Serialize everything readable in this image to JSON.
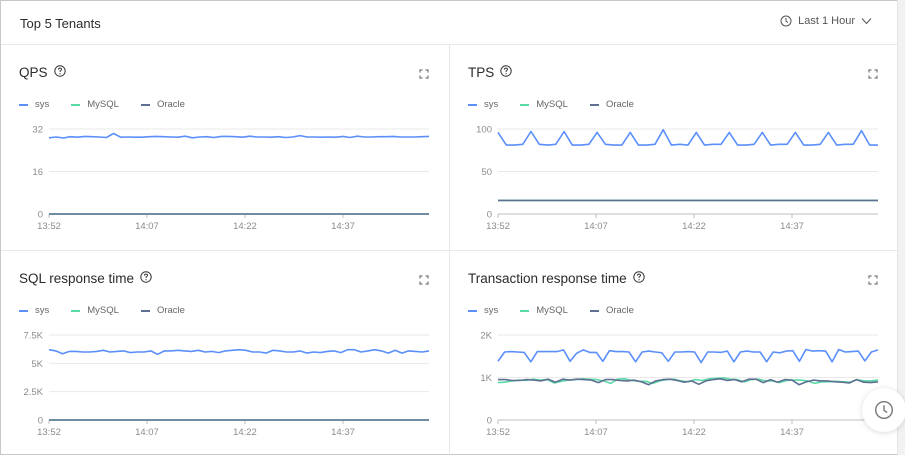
{
  "header": {
    "title": "Top 5 Tenants",
    "time_range": "Last 1 Hour"
  },
  "legend": [
    {
      "name": "sys",
      "color": "#5b8ff9"
    },
    {
      "name": "MySQL",
      "color": "#5ad8a6"
    },
    {
      "name": "Oracle",
      "color": "#5d7092"
    }
  ],
  "panels": [
    {
      "title": "QPS",
      "yticks": [
        "32",
        "16",
        "0"
      ]
    },
    {
      "title": "TPS",
      "yticks": [
        "100",
        "50",
        "0"
      ]
    },
    {
      "title": "SQL response time",
      "yticks": [
        "7.5K",
        "5K",
        "2.5K",
        "0"
      ]
    },
    {
      "title": "Transaction response time",
      "yticks": [
        "2K",
        "1K",
        "0"
      ]
    }
  ],
  "xticks": [
    "13:52",
    "14:07",
    "14:22",
    "14:37"
  ],
  "chart_data": [
    {
      "type": "line",
      "title": "QPS",
      "x_ticks": [
        "13:52",
        "14:07",
        "14:22",
        "14:37"
      ],
      "ylim": [
        0,
        32
      ],
      "y_ticks": [
        0,
        16,
        32
      ],
      "legend_position": "top-left",
      "grid": true,
      "series": [
        {
          "name": "sys",
          "color": "#5b8ff9",
          "values": [
            28.7,
            29.0,
            28.6,
            29.1,
            28.9,
            29.2,
            29.1,
            29.0,
            28.8,
            30.3,
            28.9,
            29.0,
            28.9,
            28.9,
            29.1,
            29.2,
            29.1,
            29.0,
            28.9,
            29.3,
            28.7,
            29.0,
            29.1,
            28.8,
            29.2,
            29.2,
            29.1,
            28.9,
            29.3,
            29.0,
            29.0,
            28.9,
            29.1,
            28.8,
            29.0,
            29.5,
            29.0,
            29.0,
            28.9,
            29.0,
            28.9,
            29.2,
            28.8,
            29.3,
            29.0,
            29.0,
            29.1,
            29.1,
            29.2,
            29.0,
            29.0,
            29.0,
            29.1,
            29.2
          ]
        },
        {
          "name": "MySQL",
          "color": "#5ad8a6",
          "values": [
            0,
            0,
            0,
            0,
            0,
            0,
            0,
            0
          ]
        },
        {
          "name": "Oracle",
          "color": "#5d7092",
          "values": [
            0,
            0,
            0,
            0,
            0,
            0,
            0,
            0
          ]
        }
      ]
    },
    {
      "type": "line",
      "title": "TPS",
      "x_ticks": [
        "13:52",
        "14:07",
        "14:22",
        "14:37"
      ],
      "ylim": [
        0,
        100
      ],
      "y_ticks": [
        0,
        50,
        100
      ],
      "legend_position": "top-left",
      "grid": true,
      "series": [
        {
          "name": "sys",
          "color": "#5b8ff9",
          "values": [
            96,
            81,
            81,
            82,
            97,
            82,
            81,
            82,
            97,
            81,
            81,
            82,
            96,
            82,
            81,
            81,
            96,
            81,
            81,
            82,
            99,
            81,
            82,
            81,
            96,
            81,
            82,
            82,
            96,
            81,
            81,
            82,
            96,
            81,
            82,
            82,
            96,
            81,
            81,
            82,
            96,
            81,
            82,
            82,
            98,
            81,
            81
          ]
        },
        {
          "name": "MySQL",
          "color": "#5ad8a6",
          "values": [
            16,
            16,
            16,
            16,
            16,
            16,
            16,
            16
          ]
        },
        {
          "name": "Oracle",
          "color": "#5d7092",
          "values": [
            16,
            16,
            16,
            16,
            16,
            16,
            16,
            16
          ]
        }
      ]
    },
    {
      "type": "line",
      "title": "SQL response time",
      "x_ticks": [
        "13:52",
        "14:07",
        "14:22",
        "14:37"
      ],
      "ylim": [
        0,
        7500
      ],
      "y_ticks": [
        0,
        2500,
        5000,
        7500
      ],
      "legend_position": "top-left",
      "grid": true,
      "series": [
        {
          "name": "sys",
          "color": "#5b8ff9",
          "values": [
            6200,
            6100,
            5850,
            6050,
            6050,
            6000,
            6000,
            6050,
            6150,
            6000,
            6050,
            6100,
            5950,
            6000,
            6000,
            6100,
            5800,
            6100,
            6100,
            6150,
            6100,
            6050,
            6150,
            6000,
            6050,
            5950,
            6100,
            6150,
            6200,
            6150,
            6000,
            6000,
            5900,
            6150,
            6100,
            6000,
            6000,
            6100,
            5900,
            6000,
            5950,
            6050,
            6100,
            5950,
            6200,
            6200,
            6000,
            6100,
            6200,
            6100,
            5900,
            6150,
            5900,
            6100,
            6050,
            6000,
            6100
          ]
        },
        {
          "name": "MySQL",
          "color": "#5ad8a6",
          "values": [
            0,
            0,
            0,
            0,
            0,
            0,
            0,
            0
          ]
        },
        {
          "name": "Oracle",
          "color": "#5d7092",
          "values": [
            0,
            0,
            0,
            0,
            0,
            0,
            0,
            0
          ]
        }
      ]
    },
    {
      "type": "line",
      "title": "Transaction response time",
      "x_ticks": [
        "13:52",
        "14:07",
        "14:22",
        "14:37"
      ],
      "ylim": [
        0,
        2000
      ],
      "y_ticks": [
        0,
        1000,
        2000
      ],
      "legend_position": "top-left",
      "grid": true,
      "series": [
        {
          "name": "sys",
          "color": "#5b8ff9",
          "values": [
            1380,
            1600,
            1610,
            1600,
            1590,
            1370,
            1610,
            1610,
            1610,
            1610,
            1650,
            1380,
            1570,
            1650,
            1590,
            1590,
            1380,
            1630,
            1610,
            1610,
            1600,
            1370,
            1600,
            1620,
            1600,
            1580,
            1380,
            1600,
            1600,
            1610,
            1600,
            1350,
            1600,
            1600,
            1590,
            1620,
            1370,
            1600,
            1620,
            1600,
            1600,
            1370,
            1600,
            1580,
            1620,
            1630,
            1380,
            1660,
            1620,
            1630,
            1620,
            1370,
            1660,
            1600,
            1610,
            1620,
            1390,
            1600,
            1650
          ]
        },
        {
          "name": "MySQL",
          "color": "#5ad8a6",
          "values": [
            880,
            890,
            920,
            940,
            930,
            960,
            940,
            950,
            870,
            910,
            940,
            950,
            970,
            960,
            950,
            920,
            860,
            960,
            970,
            930,
            910,
            910,
            860,
            920,
            950,
            960,
            920,
            900,
            950,
            930,
            970,
            980,
            990,
            960,
            950,
            900,
            950,
            960,
            920,
            920,
            880,
            930,
            940,
            940,
            920,
            860,
            900,
            900,
            910,
            900,
            890,
            950,
            920,
            920,
            940
          ]
        },
        {
          "name": "Oracle",
          "color": "#5d7092",
          "values": [
            950,
            950,
            930,
            930,
            950,
            940,
            920,
            960,
            890,
            960,
            940,
            960,
            950,
            940,
            880,
            950,
            950,
            930,
            920,
            940,
            900,
            830,
            920,
            950,
            960,
            930,
            890,
            920,
            840,
            920,
            950,
            970,
            930,
            950,
            900,
            960,
            960,
            880,
            950,
            890,
            950,
            940,
            830,
            900,
            940,
            920,
            920,
            900,
            890,
            870,
            950,
            890,
            880,
            900
          ]
        }
      ]
    }
  ]
}
